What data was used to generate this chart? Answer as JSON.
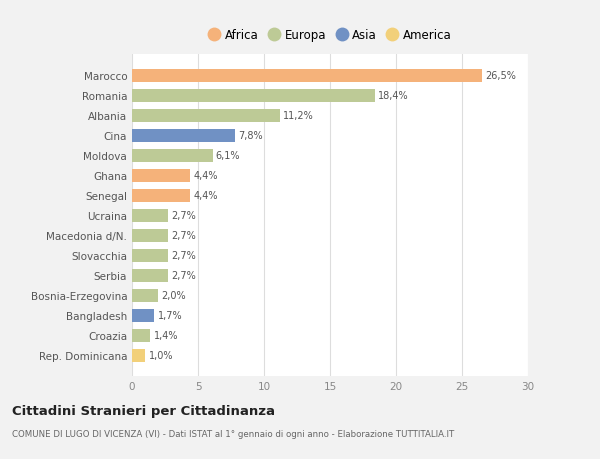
{
  "categories": [
    "Marocco",
    "Romania",
    "Albania",
    "Cina",
    "Moldova",
    "Ghana",
    "Senegal",
    "Ucraina",
    "Macedonia d/N.",
    "Slovacchia",
    "Serbia",
    "Bosnia-Erzegovina",
    "Bangladesh",
    "Croazia",
    "Rep. Dominicana"
  ],
  "values": [
    26.5,
    18.4,
    11.2,
    7.8,
    6.1,
    4.4,
    4.4,
    2.7,
    2.7,
    2.7,
    2.7,
    2.0,
    1.7,
    1.4,
    1.0
  ],
  "labels": [
    "26,5%",
    "18,4%",
    "11,2%",
    "7,8%",
    "6,1%",
    "4,4%",
    "4,4%",
    "2,7%",
    "2,7%",
    "2,7%",
    "2,7%",
    "2,0%",
    "1,7%",
    "1,4%",
    "1,0%"
  ],
  "continents": [
    "Africa",
    "Europa",
    "Europa",
    "Asia",
    "Europa",
    "Africa",
    "Africa",
    "Europa",
    "Europa",
    "Europa",
    "Europa",
    "Europa",
    "Asia",
    "Europa",
    "America"
  ],
  "colors": {
    "Africa": "#F5B27A",
    "Europa": "#BDCA96",
    "Asia": "#7091C4",
    "America": "#F2D07A"
  },
  "legend_order": [
    "Africa",
    "Europa",
    "Asia",
    "America"
  ],
  "title": "Cittadini Stranieri per Cittadinanza",
  "subtitle": "COMUNE DI LUGO DI VICENZA (VI) - Dati ISTAT al 1° gennaio di ogni anno - Elaborazione TUTTITALIA.IT",
  "xlim": [
    0,
    30
  ],
  "xticks": [
    0,
    5,
    10,
    15,
    20,
    25,
    30
  ],
  "bg_color": "#f2f2f2",
  "bar_bg_color": "#ffffff"
}
